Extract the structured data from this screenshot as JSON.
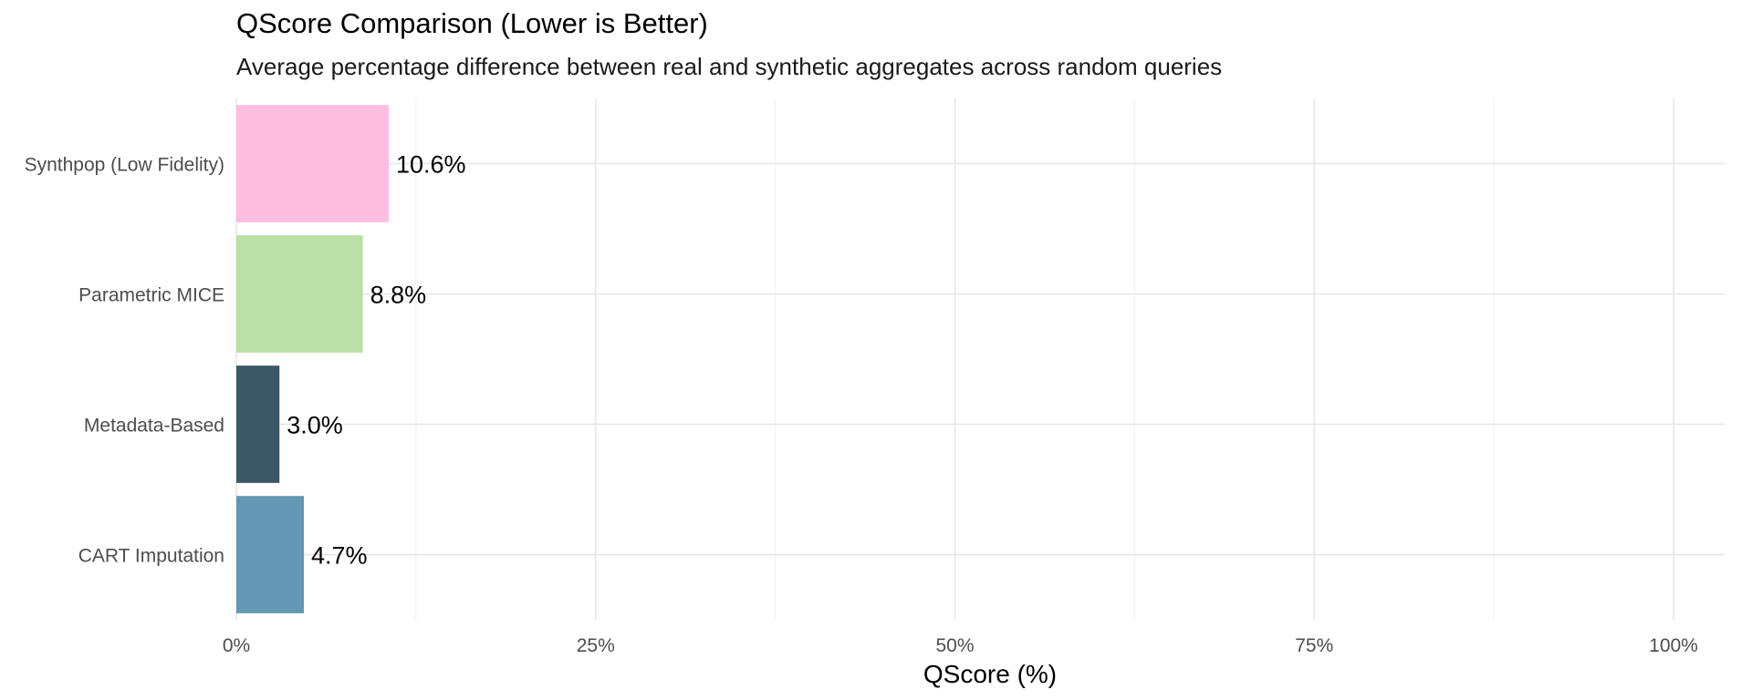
{
  "chart_data": {
    "type": "bar",
    "orientation": "horizontal",
    "title": "QScore Comparison (Lower is Better)",
    "subtitle": "Average percentage difference between real and synthetic aggregates across random queries",
    "xlabel": "QScore (%)",
    "ylabel": "",
    "xlim": [
      0,
      100
    ],
    "x_ticks": [
      0,
      25,
      50,
      75,
      100
    ],
    "x_tick_labels": [
      "0%",
      "25%",
      "50%",
      "75%",
      "100%"
    ],
    "grid": true,
    "legend": "none",
    "categories": [
      "Synthpop (Low Fidelity)",
      "Parametric MICE",
      "Metadata-Based",
      "CART Imputation"
    ],
    "values": [
      10.6,
      8.8,
      3.0,
      4.7
    ],
    "value_labels": [
      "10.6%",
      "8.8%",
      "3.0%",
      "4.7%"
    ],
    "colors": [
      "#ffbde0",
      "#b9dfa5",
      "#3c5764",
      "#6497b1"
    ]
  }
}
